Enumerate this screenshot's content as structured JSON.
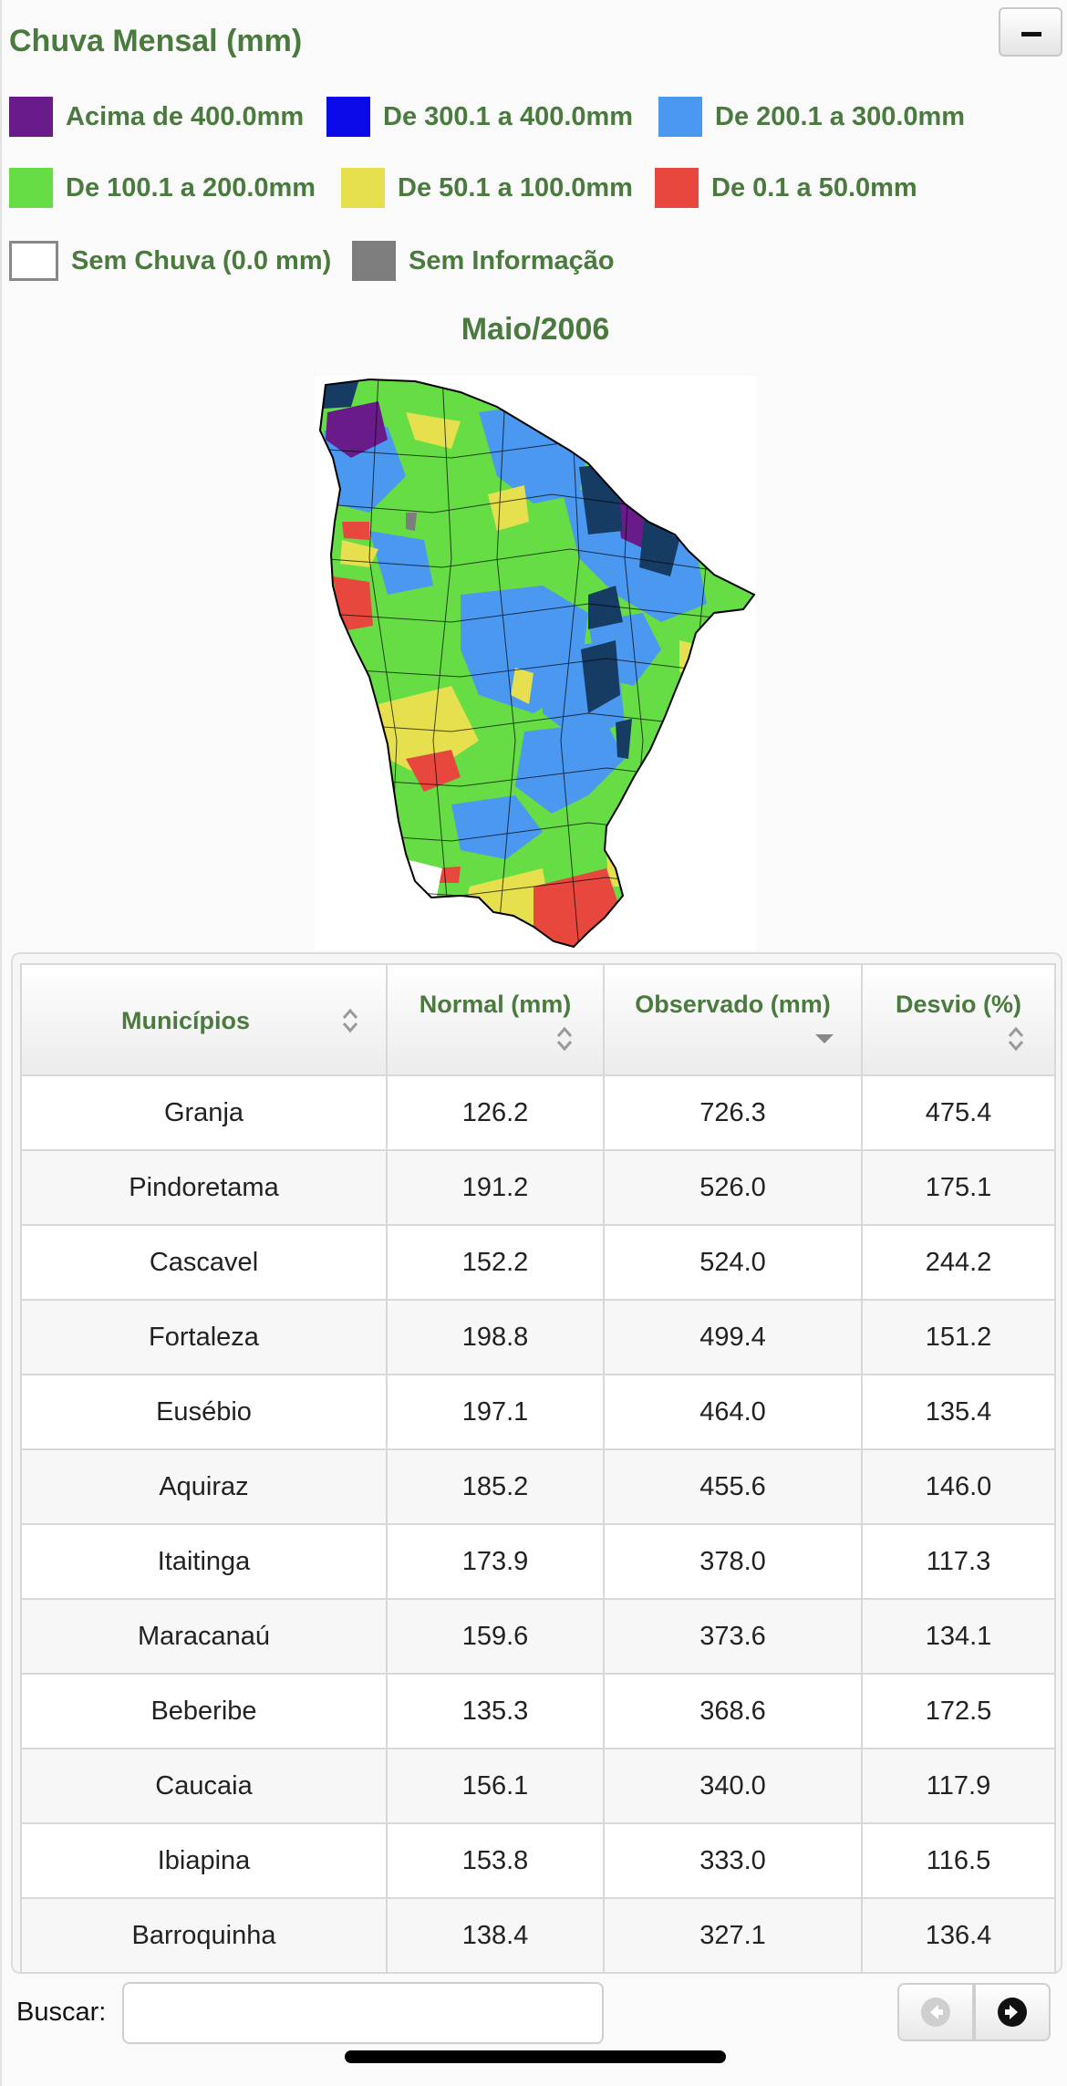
{
  "header": {
    "title": "Chuva Mensal (mm)",
    "collapse_label": "−"
  },
  "legend": [
    {
      "label": "Acima de 400.0mm",
      "color": "#6a1b8a"
    },
    {
      "label": "De 300.1 a 400.0mm",
      "color": "#0a0ae8"
    },
    {
      "label": "De 200.1 a 300.0mm",
      "color": "#4a98f0"
    },
    {
      "label": "De 100.1 a 200.0mm",
      "color": "#66dd44"
    },
    {
      "label": "De 50.1 a 100.0mm",
      "color": "#e6df4e"
    },
    {
      "label": "De 0.1 a 50.0mm",
      "color": "#e8473e"
    },
    {
      "label": "Sem Chuva (0.0 mm)",
      "color": "#ffffff"
    },
    {
      "label": "Sem Informação",
      "color": "#7d7d7d"
    }
  ],
  "map": {
    "title": "Maio/2006",
    "dark_region_color": "#173c64"
  },
  "table": {
    "headers": [
      "Municípios",
      "Normal (mm)",
      "Observado (mm)",
      "Desvio (%)"
    ],
    "sort_state": [
      "unsorted",
      "unsorted",
      "descending",
      "unsorted"
    ],
    "rows": [
      [
        "Granja",
        "126.2",
        "726.3",
        "475.4"
      ],
      [
        "Pindoretama",
        "191.2",
        "526.0",
        "175.1"
      ],
      [
        "Cascavel",
        "152.2",
        "524.0",
        "244.2"
      ],
      [
        "Fortaleza",
        "198.8",
        "499.4",
        "151.2"
      ],
      [
        "Eusébio",
        "197.1",
        "464.0",
        "135.4"
      ],
      [
        "Aquiraz",
        "185.2",
        "455.6",
        "146.0"
      ],
      [
        "Itaitinga",
        "173.9",
        "378.0",
        "117.3"
      ],
      [
        "Maracanaú",
        "159.6",
        "373.6",
        "134.1"
      ],
      [
        "Beberibe",
        "135.3",
        "368.6",
        "172.5"
      ],
      [
        "Caucaia",
        "156.1",
        "340.0",
        "117.9"
      ],
      [
        "Ibiapina",
        "153.8",
        "333.0",
        "116.5"
      ],
      [
        "Barroquinha",
        "138.4",
        "327.1",
        "136.4"
      ]
    ]
  },
  "search": {
    "label": "Buscar:",
    "value": ""
  },
  "pagination": {
    "prev_icon": "arrow-left-circle-icon",
    "next_icon": "arrow-right-circle-icon"
  }
}
